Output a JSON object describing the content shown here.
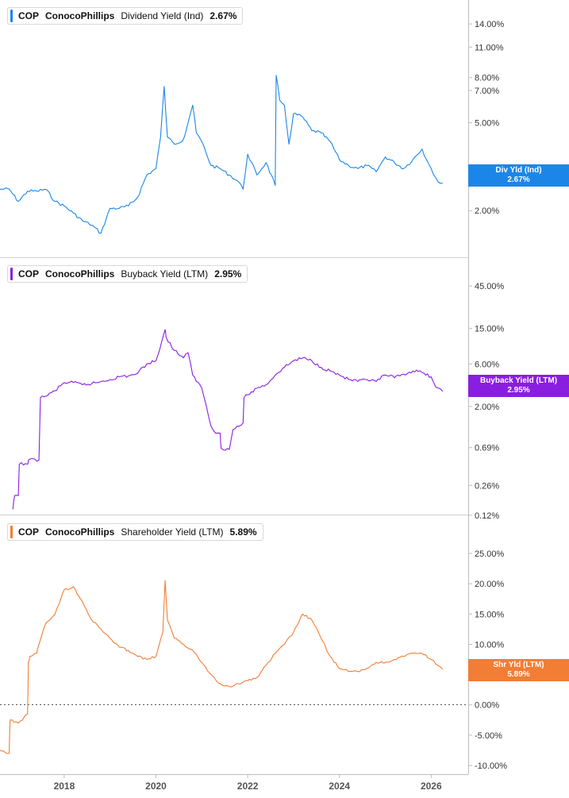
{
  "chart_data": [
    {
      "type": "line",
      "ticker": "COP",
      "company": "ConocoPhillips",
      "metric": "Dividend Yield (Ind)",
      "current_value": "2.67%",
      "badge_label": "Div Yld (Ind)",
      "color": "#1c86e8",
      "scale": "log",
      "y_ticks": [
        "14.00%",
        "11.00%",
        "8.00%",
        "7.00%",
        "5.00%",
        "3.00%",
        "2.00%"
      ],
      "y_tick_values": [
        14,
        11,
        8,
        7,
        5,
        3,
        2
      ],
      "ylim": [
        1.5,
        16
      ],
      "series": [
        {
          "x": [
            2016.6,
            2016.8,
            2017.0,
            2017.2,
            2017.4,
            2017.6,
            2017.8,
            2018.0,
            2018.2,
            2018.4,
            2018.6,
            2018.8,
            2019.0,
            2019.2,
            2019.4,
            2019.6,
            2019.8,
            2020.0,
            2020.1,
            2020.18,
            2020.25,
            2020.4,
            2020.6,
            2020.8,
            2020.88,
            2021.0,
            2021.2,
            2021.4,
            2021.6,
            2021.8,
            2021.9,
            2022.0,
            2022.2,
            2022.4,
            2022.6,
            2022.62,
            2022.7,
            2022.8,
            2022.9,
            2023.0,
            2023.2,
            2023.4,
            2023.6,
            2023.8,
            2024.0,
            2024.2,
            2024.4,
            2024.6,
            2024.8,
            2025.0,
            2025.2,
            2025.4,
            2025.6,
            2025.8,
            2025.9,
            2026.0,
            2026.15,
            2026.25
          ],
          "y": [
            2.5,
            2.5,
            2.2,
            2.45,
            2.45,
            2.5,
            2.2,
            2.1,
            1.95,
            1.8,
            1.72,
            1.58,
            2.05,
            2.05,
            2.1,
            2.3,
            2.9,
            3.1,
            4.3,
            7.3,
            4.3,
            4.0,
            4.2,
            6.0,
            4.5,
            4.1,
            3.2,
            3.1,
            2.9,
            2.7,
            2.5,
            3.6,
            2.9,
            3.3,
            2.6,
            8.2,
            6.3,
            6.0,
            4.0,
            5.5,
            5.3,
            4.6,
            4.5,
            4.1,
            3.4,
            3.2,
            3.1,
            3.2,
            3.0,
            3.5,
            3.3,
            3.1,
            3.4,
            3.8,
            3.4,
            3.1,
            2.7,
            2.67
          ]
        }
      ]
    },
    {
      "type": "line",
      "ticker": "COP",
      "company": "ConocoPhillips",
      "metric": "Buyback Yield (LTM)",
      "current_value": "2.95%",
      "badge_label": "Buyback Yield (LTM)",
      "color": "#8a1ee0",
      "scale": "log",
      "y_ticks": [
        "45.00%",
        "15.00%",
        "6.00%",
        "2.00%",
        "0.69%",
        "0.26%",
        "0.12%"
      ],
      "y_tick_values": [
        45,
        15,
        6,
        2,
        0.69,
        0.26,
        0.12
      ],
      "ylim": [
        0.12,
        60
      ],
      "series": [
        {
          "x": [
            2016.88,
            2016.92,
            2017.0,
            2017.02,
            2017.2,
            2017.22,
            2017.45,
            2017.48,
            2017.6,
            2017.8,
            2018.0,
            2018.2,
            2018.4,
            2018.6,
            2018.8,
            2019.0,
            2019.2,
            2019.4,
            2019.6,
            2019.8,
            2020.0,
            2020.2,
            2020.22,
            2020.4,
            2020.6,
            2020.7,
            2020.8,
            2021.0,
            2021.1,
            2021.2,
            2021.3,
            2021.4,
            2021.42,
            2021.6,
            2021.68,
            2021.9,
            2021.92,
            2022.0,
            2022.2,
            2022.4,
            2022.6,
            2022.8,
            2023.0,
            2023.2,
            2023.4,
            2023.6,
            2023.8,
            2024.0,
            2024.2,
            2024.4,
            2024.6,
            2024.8,
            2025.0,
            2025.2,
            2025.4,
            2025.6,
            2025.8,
            2026.0,
            2026.1,
            2026.25
          ],
          "y": [
            0.14,
            0.2,
            0.2,
            0.45,
            0.45,
            0.5,
            0.5,
            2.5,
            2.6,
            3.0,
            3.7,
            3.7,
            3.5,
            3.6,
            3.8,
            4.0,
            4.3,
            4.4,
            4.7,
            6.0,
            6.5,
            14.5,
            12.0,
            8.5,
            7.0,
            8.0,
            4.5,
            3.2,
            2.0,
            1.2,
            1.0,
            1.0,
            0.68,
            0.66,
            1.1,
            1.3,
            2.5,
            2.7,
            3.2,
            3.5,
            4.5,
            5.5,
            6.5,
            7.0,
            6.5,
            5.5,
            5.0,
            4.5,
            4.0,
            3.8,
            4.0,
            3.8,
            4.5,
            4.2,
            4.6,
            5.0,
            4.8,
            4.3,
            3.3,
            2.95
          ]
        }
      ]
    },
    {
      "type": "line",
      "ticker": "COP",
      "company": "ConocoPhillips",
      "metric": "Shareholder Yield (LTM)",
      "current_value": "5.89%",
      "badge_label": "Shr Yld (LTM)",
      "color": "#f27d35",
      "scale": "linear",
      "y_ticks": [
        "25.00%",
        "20.00%",
        "15.00%",
        "10.00%",
        "5.00%",
        "0.00%",
        "-5.00%",
        "-10.00%"
      ],
      "y_tick_values": [
        25,
        20,
        15,
        10,
        5,
        0,
        -5,
        -10
      ],
      "ylim": [
        -10,
        25
      ],
      "series": [
        {
          "x": [
            2016.6,
            2016.8,
            2016.82,
            2017.0,
            2017.2,
            2017.22,
            2017.25,
            2017.4,
            2017.45,
            2017.6,
            2017.8,
            2018.0,
            2018.2,
            2018.4,
            2018.6,
            2018.8,
            2019.0,
            2019.2,
            2019.4,
            2019.6,
            2019.8,
            2020.0,
            2020.15,
            2020.2,
            2020.25,
            2020.4,
            2020.6,
            2020.8,
            2021.0,
            2021.2,
            2021.4,
            2021.6,
            2021.8,
            2022.0,
            2022.2,
            2022.4,
            2022.6,
            2022.8,
            2023.0,
            2023.2,
            2023.4,
            2023.6,
            2023.8,
            2024.0,
            2024.2,
            2024.4,
            2024.6,
            2024.8,
            2025.0,
            2025.2,
            2025.4,
            2025.6,
            2025.8,
            2026.0,
            2026.15,
            2026.25
          ],
          "y": [
            -7.5,
            -8.0,
            -2.5,
            -3.0,
            -1.5,
            7.0,
            8.0,
            8.5,
            10.0,
            13.5,
            15.0,
            19.0,
            19.5,
            17.0,
            14.0,
            12.5,
            11.0,
            9.5,
            9.0,
            8.0,
            7.5,
            8.0,
            12.0,
            20.5,
            14.0,
            11.0,
            10.0,
            9.0,
            7.0,
            5.0,
            3.5,
            3.0,
            3.5,
            4.0,
            4.5,
            6.5,
            8.5,
            10.0,
            12.0,
            15.0,
            14.0,
            11.0,
            8.0,
            6.0,
            5.5,
            5.5,
            6.0,
            7.0,
            7.0,
            7.5,
            8.0,
            8.5,
            8.5,
            7.5,
            6.5,
            5.89
          ]
        }
      ]
    }
  ],
  "x_axis": {
    "ticks": [
      "2018",
      "2020",
      "2022",
      "2024",
      "2026"
    ],
    "tick_values": [
      2018,
      2020,
      2022,
      2024,
      2026
    ],
    "range": [
      2016.6,
      2026.6
    ]
  }
}
